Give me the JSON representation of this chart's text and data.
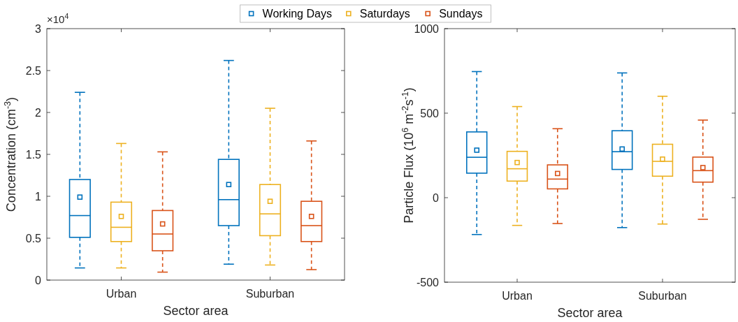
{
  "chart_data": [
    {
      "type": "box",
      "categories": [
        "Urban",
        "Suburban"
      ],
      "xlabel": "Sector area",
      "ylabel": "Concentration (cm$^{-3}$)",
      "ylim": [
        0,
        3
      ],
      "yticks": [
        0,
        0.5,
        1,
        1.5,
        2,
        2.5,
        3
      ],
      "annotations": [
        "×10$^{4}$"
      ],
      "legend": "top",
      "marker": "square",
      "series": [
        {
          "name": "Working Days",
          "color": "#0072bd",
          "boxes": [
            {
              "low": 0.145,
              "q1": 0.51,
              "median": 0.77,
              "q3": 1.2,
              "high": 2.24,
              "mean": 0.99
            },
            {
              "low": 0.19,
              "q1": 0.65,
              "median": 0.96,
              "q3": 1.44,
              "high": 2.62,
              "mean": 1.14
            }
          ]
        },
        {
          "name": "Saturdays",
          "color": "#edb120",
          "boxes": [
            {
              "low": 0.145,
              "q1": 0.46,
              "median": 0.63,
              "q3": 0.93,
              "high": 1.63,
              "mean": 0.76
            },
            {
              "low": 0.18,
              "q1": 0.53,
              "median": 0.79,
              "q3": 1.14,
              "high": 2.05,
              "mean": 0.94
            }
          ]
        },
        {
          "name": "Sundays",
          "color": "#d95319",
          "boxes": [
            {
              "low": 0.095,
              "q1": 0.35,
              "median": 0.55,
              "q3": 0.83,
              "high": 1.53,
              "mean": 0.67
            },
            {
              "low": 0.125,
              "q1": 0.46,
              "median": 0.65,
              "q3": 0.94,
              "high": 1.66,
              "mean": 0.76
            }
          ]
        }
      ]
    },
    {
      "type": "box",
      "categories": [
        "Urban",
        "Suburban"
      ],
      "xlabel": "Sector area",
      "ylabel": "Particle Flux (10$^{6}$ m$^{-2}$s$^{-1}$)",
      "ylim": [
        -500,
        1000
      ],
      "yticks": [
        -500,
        0,
        500,
        1000
      ],
      "marker": "square",
      "series": [
        {
          "color": "#0072bd",
          "boxes": [
            {
              "low": -218,
              "q1": 145,
              "median": 239,
              "q3": 389,
              "high": 746,
              "mean": 281
            },
            {
              "low": -177,
              "q1": 167,
              "median": 272,
              "q3": 396,
              "high": 738,
              "mean": 288
            }
          ]
        },
        {
          "color": "#edb120",
          "boxes": [
            {
              "low": -164,
              "q1": 98,
              "median": 171,
              "q3": 274,
              "high": 539,
              "mean": 208
            },
            {
              "low": -156,
              "q1": 127,
              "median": 215,
              "q3": 316,
              "high": 600,
              "mean": 228
            }
          ]
        },
        {
          "color": "#d95319",
          "boxes": [
            {
              "low": -153,
              "q1": 52,
              "median": 110,
              "q3": 194,
              "high": 408,
              "mean": 143
            },
            {
              "low": -128,
              "q1": 92,
              "median": 160,
              "q3": 240,
              "high": 459,
              "mean": 178
            }
          ]
        }
      ]
    }
  ]
}
